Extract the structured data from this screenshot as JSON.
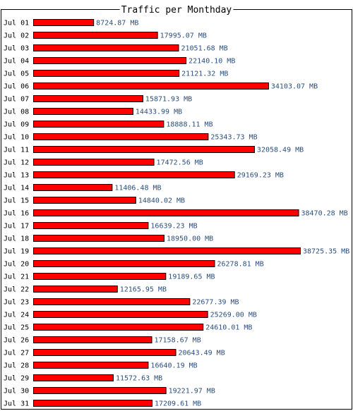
{
  "chart_data": {
    "type": "bar",
    "orientation": "horizontal",
    "title": "Traffic per Monthday",
    "unit": "MB",
    "bar_color": "#ff0000",
    "bar_outline_color": "#000000",
    "value_label_color": "#2a4f7f",
    "xlim": [
      0,
      38725.35
    ],
    "grid": false,
    "legend": "none",
    "categories": [
      "Jul 01",
      "Jul 02",
      "Jul 03",
      "Jul 04",
      "Jul 05",
      "Jul 06",
      "Jul 07",
      "Jul 08",
      "Jul 09",
      "Jul 10",
      "Jul 11",
      "Jul 12",
      "Jul 13",
      "Jul 14",
      "Jul 15",
      "Jul 16",
      "Jul 17",
      "Jul 18",
      "Jul 19",
      "Jul 20",
      "Jul 21",
      "Jul 22",
      "Jul 23",
      "Jul 24",
      "Jul 25",
      "Jul 26",
      "Jul 27",
      "Jul 28",
      "Jul 29",
      "Jul 30",
      "Jul 31"
    ],
    "values": [
      8724.87,
      17995.07,
      21051.68,
      22140.1,
      21121.32,
      34103.07,
      15871.93,
      14433.99,
      18888.11,
      25343.73,
      32058.49,
      17472.56,
      29169.23,
      11406.48,
      14840.02,
      38470.28,
      16639.23,
      18950.0,
      38725.35,
      26278.81,
      19189.65,
      12165.95,
      22677.39,
      25269.0,
      24610.01,
      17158.67,
      20643.49,
      16640.19,
      11572.63,
      19221.97,
      17209.61
    ],
    "value_labels": [
      "8724.87 MB",
      "17995.07 MB",
      "21051.68 MB",
      "22140.10 MB",
      "21121.32 MB",
      "34103.07 MB",
      "15871.93 MB",
      "14433.99 MB",
      "18888.11 MB",
      "25343.73 MB",
      "32058.49 MB",
      "17472.56 MB",
      "29169.23 MB",
      "11406.48 MB",
      "14840.02 MB",
      "38470.28 MB",
      "16639.23 MB",
      "18950.00 MB",
      "38725.35 MB",
      "26278.81 MB",
      "19189.65 MB",
      "12165.95 MB",
      "22677.39 MB",
      "25269.00 MB",
      "24610.01 MB",
      "17158.67 MB",
      "20643.49 MB",
      "16640.19 MB",
      "11572.63 MB",
      "19221.97 MB",
      "17209.61 MB"
    ]
  }
}
